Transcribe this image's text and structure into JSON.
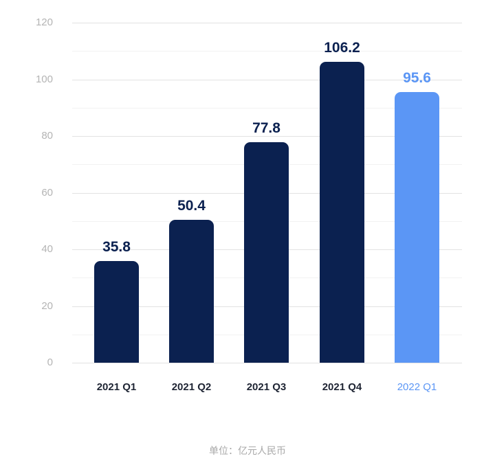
{
  "chart_data": {
    "type": "bar",
    "title": "",
    "xlabel": "",
    "ylabel": "",
    "unit_note": "单位：亿元人民币",
    "categories": [
      "2021 Q1",
      "2021 Q2",
      "2021 Q3",
      "2021 Q4",
      "2022 Q1"
    ],
    "values": [
      35.8,
      50.4,
      77.8,
      106.2,
      95.6
    ],
    "value_labels": [
      "35.8",
      "50.4",
      "77.8",
      "106.2",
      "95.6"
    ],
    "bar_colors": [
      "#0b2150",
      "#0b2150",
      "#0b2150",
      "#0b2150",
      "#5b96f5"
    ],
    "highlight_category": "2022 Q1",
    "ylim": [
      0,
      120
    ],
    "yticks": [
      "0",
      "20",
      "40",
      "60",
      "80",
      "100",
      "120"
    ],
    "grid": true,
    "legend": null
  },
  "colors": {
    "primary_bar": "#0b2150",
    "highlight_bar": "#5b96f5",
    "axis_text": "#b4b4b4",
    "gridline": "#e2e2e2"
  }
}
